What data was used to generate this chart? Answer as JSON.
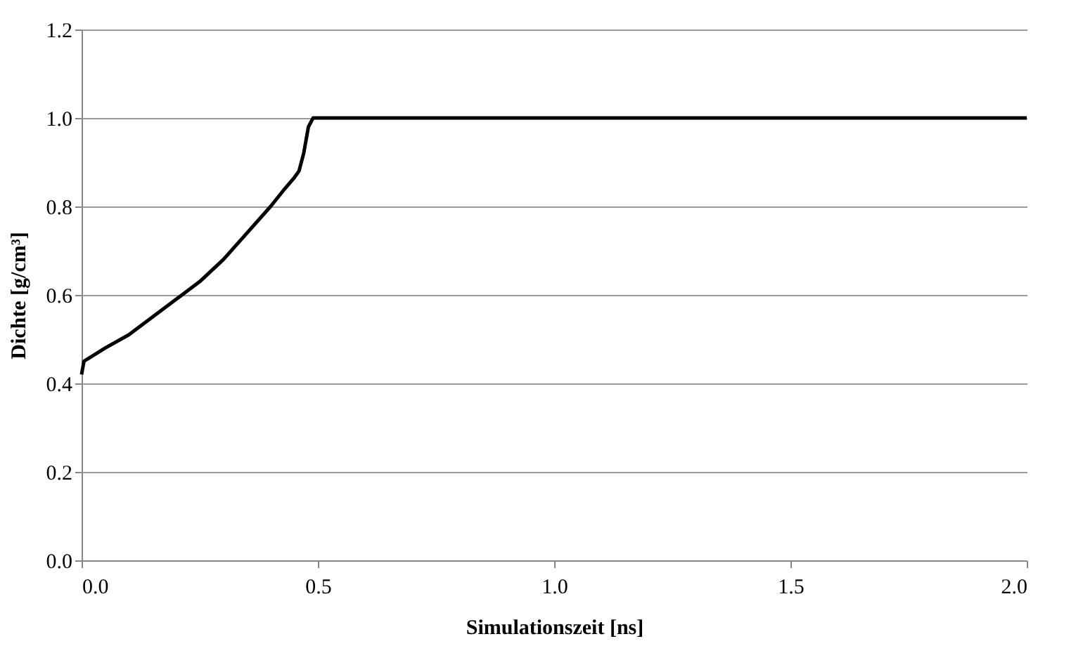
{
  "chart_data": {
    "type": "line",
    "xlabel": "Simulationszeit [ns]",
    "ylabel": "Dichte [g/cm³]",
    "x": [
      0,
      0.005,
      0.05,
      0.1,
      0.15,
      0.2,
      0.25,
      0.3,
      0.35,
      0.4,
      0.43,
      0.45,
      0.46,
      0.47,
      0.48,
      0.49,
      0.5,
      0.75,
      1.0,
      1.25,
      1.5,
      1.75,
      2.0
    ],
    "series": [
      {
        "color": "#000000",
        "values": [
          0.42,
          0.45,
          0.48,
          0.51,
          0.55,
          0.59,
          0.63,
          0.68,
          0.74,
          0.8,
          0.84,
          0.865,
          0.88,
          0.92,
          0.98,
          1.0,
          1.0,
          1.0,
          1.0,
          1.0,
          1.0,
          1.0,
          1.0
        ]
      }
    ],
    "xlim": [
      0,
      2
    ],
    "xticks": [
      {
        "value": 0,
        "label": "0.0"
      },
      {
        "value": 0.5,
        "label": "0.5"
      },
      {
        "value": 1,
        "label": "1.0"
      },
      {
        "value": 1.5,
        "label": "1.5"
      },
      {
        "value": 2,
        "label": "2.0"
      }
    ],
    "ylim": [
      0,
      1.2
    ],
    "yticks": [
      {
        "value": 0,
        "label": "0.0"
      },
      {
        "value": 0.2,
        "label": "0.2"
      },
      {
        "value": 0.4,
        "label": "0.4"
      },
      {
        "value": 0.6,
        "label": "0.6"
      },
      {
        "value": 0.8,
        "label": "0.8"
      },
      {
        "value": 1,
        "label": "1.0"
      },
      {
        "value": 1.2,
        "label": "1.2"
      }
    ],
    "grid": "y"
  }
}
